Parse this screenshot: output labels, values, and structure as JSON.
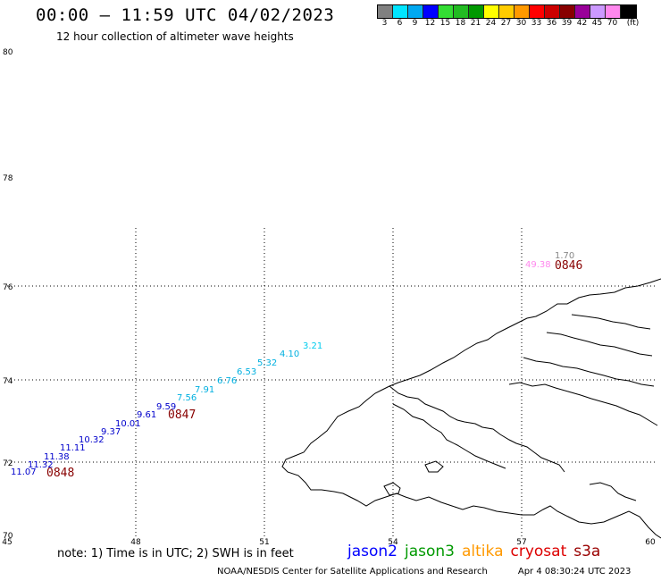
{
  "title": "00:00 – 11:59 UTC 04/02/2023",
  "subtitle": "12 hour collection of altimeter wave heights",
  "colorbar": {
    "colors": [
      "#808080",
      "#00e5ff",
      "#00a8f0",
      "#0000ff",
      "#33dd33",
      "#22bb22",
      "#009900",
      "#ffff00",
      "#ffcc00",
      "#ff9900",
      "#ff0000",
      "#cc0000",
      "#880000",
      "#990099",
      "#cc99ff",
      "#ff88ee",
      "#000000"
    ],
    "labels": [
      "3",
      "6",
      "9",
      "12",
      "15",
      "18",
      "21",
      "24",
      "27",
      "30",
      "33",
      "36",
      "39",
      "42",
      "45",
      "70",
      "(ft)"
    ]
  },
  "map": {
    "y_labels": [
      {
        "lat": 80,
        "text": "80"
      },
      {
        "lat": 78,
        "text": "78"
      },
      {
        "lat": 76,
        "text": "76"
      },
      {
        "lat": 74,
        "text": "74"
      },
      {
        "lat": 72,
        "text": "72"
      },
      {
        "lat": 70,
        "text": "70"
      }
    ],
    "x_labels": [
      {
        "lon": 45,
        "text": "45"
      },
      {
        "lon": 48,
        "text": "48"
      },
      {
        "lon": 51,
        "text": "51"
      },
      {
        "lon": 54,
        "text": "54"
      },
      {
        "lon": 57,
        "text": "57"
      },
      {
        "lon": 60,
        "text": "60"
      }
    ],
    "swh_points": [
      {
        "value": "11.07",
        "color": "#0000cc"
      },
      {
        "value": "11.32",
        "color": "#0000cc"
      },
      {
        "value": "11.38",
        "color": "#0000cc"
      },
      {
        "value": "11.11",
        "color": "#0000cc"
      },
      {
        "value": "10.32",
        "color": "#0000cc"
      },
      {
        "value": "9.37",
        "color": "#0000cc"
      },
      {
        "value": "10.01",
        "color": "#0000cc"
      },
      {
        "value": "9.61",
        "color": "#0000cc"
      },
      {
        "value": "9.59",
        "color": "#0000cc"
      },
      {
        "value": "7.56",
        "color": "#00b0e0"
      },
      {
        "value": "7.91",
        "color": "#00b0e0"
      },
      {
        "value": "6.76",
        "color": "#00b0e0"
      },
      {
        "value": "6.53",
        "color": "#00b0e0"
      },
      {
        "value": "5.32",
        "color": "#00b0e0"
      },
      {
        "value": "4.10",
        "color": "#00b0e0"
      },
      {
        "value": "3.21",
        "color": "#00ccee"
      },
      {
        "value": "49.38",
        "color": "#ff88ee"
      },
      {
        "value": "1.70",
        "color": "#888888"
      }
    ],
    "time_labels": [
      {
        "text": "0848",
        "color": "#880000"
      },
      {
        "text": "0847",
        "color": "#880000"
      },
      {
        "text": "0846",
        "color": "#880000"
      }
    ]
  },
  "note": "note:  1) Time is in UTC;  2) SWH is in feet",
  "missions": [
    {
      "name": "jason2",
      "color": "#0000ff"
    },
    {
      "name": "jason3",
      "color": "#009900"
    },
    {
      "name": "altika",
      "color": "#ff9900"
    },
    {
      "name": "cryosat",
      "color": "#dd0000"
    },
    {
      "name": "s3a",
      "color": "#990000"
    }
  ],
  "footer": {
    "credit": "NOAA/NESDIS Center for Satellite Applications and Research",
    "timestamp": "Apr  4 08:30:24 UTC 2023"
  }
}
